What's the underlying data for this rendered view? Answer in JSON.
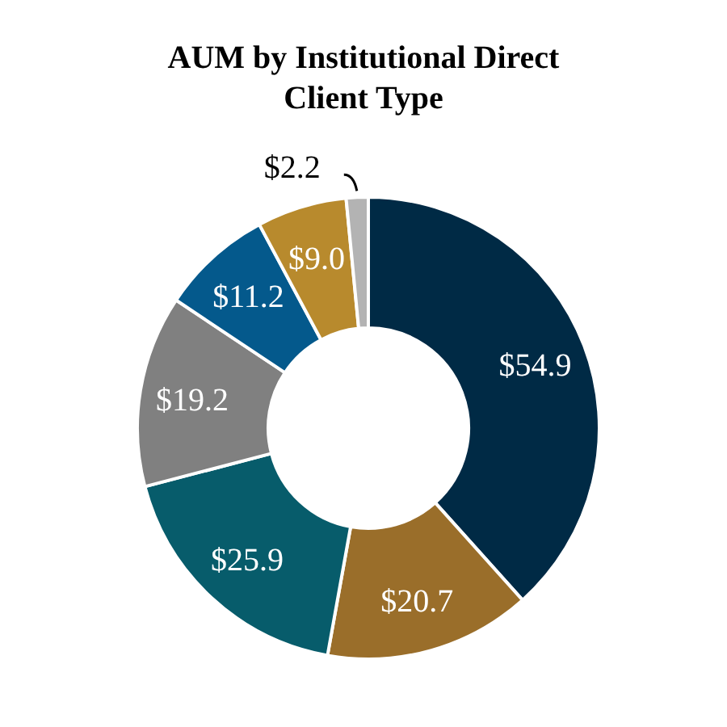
{
  "chart_data": {
    "type": "donut",
    "title": "AUM by Institutional Direct Client Type",
    "categories": [
      null,
      null,
      null,
      null,
      null,
      null,
      null
    ],
    "values": [
      54.9,
      20.7,
      25.9,
      19.2,
      11.2,
      9.0,
      2.2
    ],
    "value_labels": [
      "$54.9",
      "$20.7",
      "$25.9",
      "$19.2",
      "$11.2",
      "$9.0",
      "$2.2"
    ],
    "colors": [
      "#002a45",
      "#9a6e2a",
      "#075c6b",
      "#808080",
      "#04598c",
      "#b88a2d",
      "#b3b3b3"
    ]
  }
}
